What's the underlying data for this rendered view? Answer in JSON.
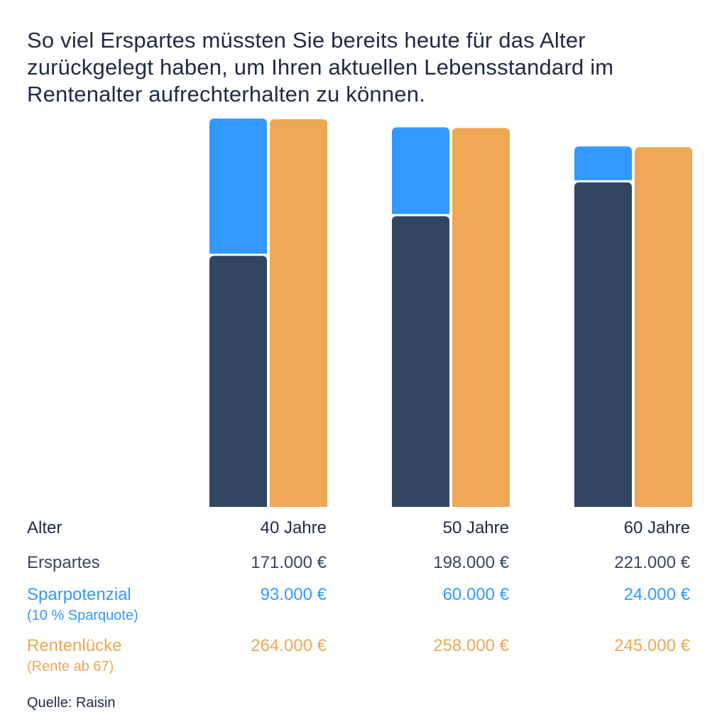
{
  "chart_data": {
    "type": "bar",
    "title": "So viel Erspartes müssten Sie bereits heute für das Alter zurückgelegt haben, um Ihren aktuellen Lebensstandard im Rentenalter aufrechterhalten zu können.",
    "categories": [
      "40 Jahre",
      "50 Jahre",
      "60 Jahre"
    ],
    "series": [
      {
        "name": "Erspartes",
        "values": [
          171000,
          198000,
          221000
        ],
        "color": "#324560",
        "stack": "a"
      },
      {
        "name": "Sparpotenzial",
        "values": [
          93000,
          60000,
          24000
        ],
        "color": "#3399ff",
        "stack": "a"
      },
      {
        "name": "Rentenlücke",
        "values": [
          264000,
          258000,
          245000
        ],
        "color": "#eda755",
        "stack": "b"
      }
    ],
    "ylim": [
      0,
      264000
    ],
    "grid": false
  },
  "table": {
    "alter_label": "Alter",
    "erspartes_label": "Erspartes",
    "spar_label": "Sparpotenzial",
    "spar_sub": "(10 % Sparquote)",
    "renten_label": "Rentenlücke",
    "renten_sub": "(Rente ab 67)",
    "ages": [
      "40 Jahre",
      "50 Jahre",
      "60 Jahre"
    ],
    "erspartes": [
      "171.000 €",
      "198.000 €",
      "221.000 €"
    ],
    "spar": [
      "93.000 €",
      "60.000 €",
      "24.000 €"
    ],
    "renten": [
      "264.000 €",
      "258.000 €",
      "245.000 €"
    ]
  },
  "source": "Quelle: Raisin"
}
